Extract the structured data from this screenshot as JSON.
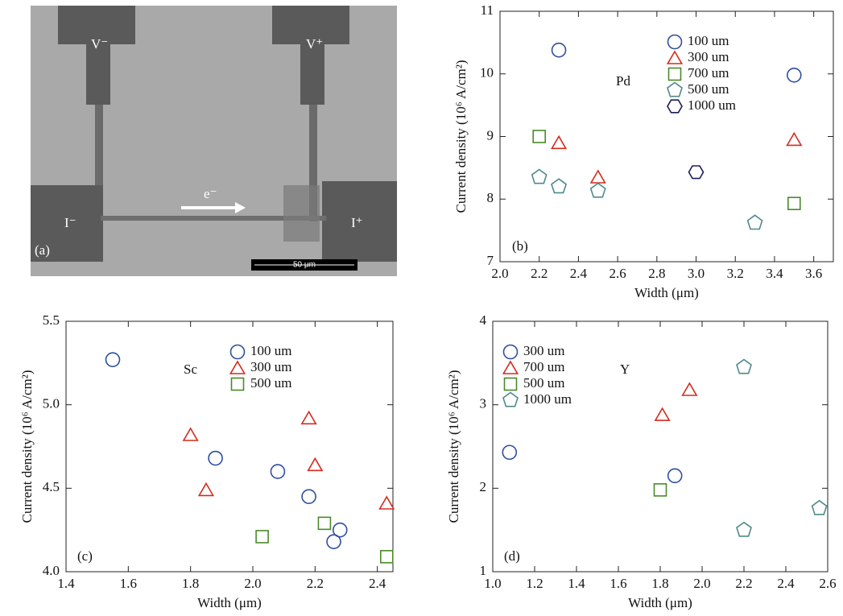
{
  "image": {
    "panel_label": "(a)",
    "labels": [
      "V⁻",
      "V⁺",
      "I⁻",
      "I⁺",
      "e⁻"
    ],
    "scale_bar": "50 μm"
  },
  "chart_data": [
    {
      "type": "scatter",
      "panel_label": "(b)",
      "annotation": "Pd",
      "xlabel": "Width (μm)",
      "ylabel": "Current density (10⁶ A/cm²)",
      "xlim": [
        2.0,
        3.7
      ],
      "xticks": [
        {
          "value": 2,
          "label": "2.0"
        },
        2.2,
        2.4,
        2.6,
        2.8,
        {
          "value": 3,
          "label": "3.0"
        },
        3.2,
        3.4,
        3.6
      ],
      "ylim": [
        7,
        11
      ],
      "yticks": [
        7,
        8,
        9,
        10,
        11
      ],
      "legend": "upper center",
      "series": [
        {
          "name": "100 um",
          "color": "#2f4f9f",
          "marker": "circle",
          "x": [
            2.3,
            3.5
          ],
          "values": [
            10.38,
            9.98
          ]
        },
        {
          "name": "300 um",
          "color": "#d42b1e",
          "marker": "triangle",
          "x": [
            2.3,
            2.5,
            3.5
          ],
          "values": [
            8.9,
            8.35,
            8.95
          ]
        },
        {
          "name": "700 um",
          "color": "#4a8a2a",
          "marker": "square",
          "x": [
            2.2,
            3.5
          ],
          "values": [
            9.0,
            7.93
          ]
        },
        {
          "name": "500 um",
          "color": "#4f8a8c",
          "marker": "pentagon",
          "x": [
            2.2,
            2.3,
            2.5,
            3.3
          ],
          "values": [
            8.35,
            8.2,
            8.13,
            7.62
          ]
        },
        {
          "name": "1000 um",
          "color": "#1e1e5a",
          "marker": "hexagon",
          "x": [
            3.0
          ],
          "values": [
            8.43
          ]
        }
      ]
    },
    {
      "type": "scatter",
      "panel_label": "(c)",
      "annotation": "Sc",
      "xlabel": "Width (μm)",
      "ylabel": "Current density (10⁶ A/cm²)",
      "xlim": [
        1.4,
        2.45
      ],
      "xticks": [
        1.4,
        1.6,
        1.8,
        {
          "value": 2,
          "label": "2.0"
        },
        2.2,
        2.4
      ],
      "ylim": [
        4.0,
        5.5
      ],
      "yticks": [
        {
          "value": 4,
          "label": "4.0"
        },
        4.5,
        {
          "value": 5,
          "label": "5.0"
        },
        5.5
      ],
      "legend": "upper center",
      "series": [
        {
          "name": "100 um",
          "color": "#2f4f9f",
          "marker": "circle",
          "x": [
            1.55,
            1.88,
            2.08,
            2.18,
            2.28,
            2.26
          ],
          "values": [
            5.27,
            4.68,
            4.6,
            4.45,
            4.25,
            4.18
          ]
        },
        {
          "name": "300 um",
          "color": "#d42b1e",
          "marker": "triangle",
          "x": [
            1.8,
            1.85,
            2.18,
            2.2,
            2.43
          ],
          "values": [
            4.82,
            4.49,
            4.92,
            4.64,
            4.41
          ]
        },
        {
          "name": "500 um",
          "color": "#4a8a2a",
          "marker": "square",
          "x": [
            2.03,
            2.23,
            2.43
          ],
          "values": [
            4.21,
            4.29,
            4.09
          ]
        }
      ]
    },
    {
      "type": "scatter",
      "panel_label": "(d)",
      "annotation": "Y",
      "xlabel": "Width (μm)",
      "ylabel": "Current density (10⁶ A/cm²)",
      "xlim": [
        1.0,
        2.6
      ],
      "xticks": [
        {
          "value": 1,
          "label": "1.0"
        },
        1.2,
        1.4,
        1.6,
        1.8,
        {
          "value": 2,
          "label": "2.0"
        },
        2.2,
        2.4,
        2.6
      ],
      "ylim": [
        1,
        4
      ],
      "yticks": [
        1,
        2,
        3,
        4
      ],
      "legend": "upper left",
      "series": [
        {
          "name": "300 um",
          "color": "#2f4f9f",
          "marker": "circle",
          "x": [
            1.08,
            1.87
          ],
          "values": [
            2.43,
            2.15
          ]
        },
        {
          "name": "700 um",
          "color": "#d42b1e",
          "marker": "triangle",
          "x": [
            1.81,
            1.94
          ],
          "values": [
            2.88,
            3.18
          ]
        },
        {
          "name": "500 um",
          "color": "#4a8a2a",
          "marker": "square",
          "x": [
            1.8
          ],
          "values": [
            1.98
          ]
        },
        {
          "name": "1000 um",
          "color": "#4f8a8c",
          "marker": "pentagon",
          "x": [
            2.2,
            2.2,
            2.56
          ],
          "values": [
            3.45,
            1.5,
            1.76
          ]
        }
      ]
    }
  ]
}
